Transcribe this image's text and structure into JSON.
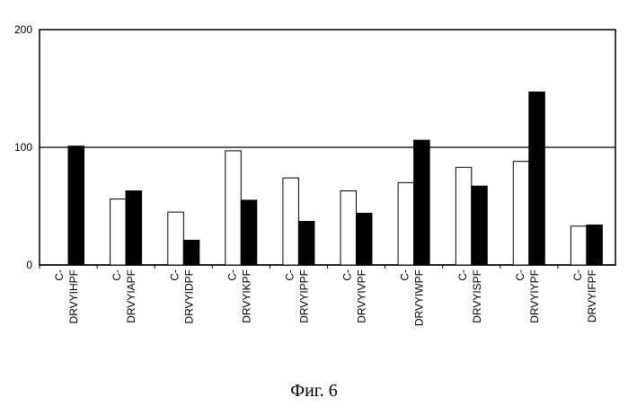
{
  "chart_data": {
    "type": "bar",
    "categories": [
      [
        "C-",
        "DRVYIHPF"
      ],
      [
        "C-",
        "DRVYIAPF"
      ],
      [
        "C-",
        "DRVYIDPF"
      ],
      [
        "C-",
        "DRVYIKPF"
      ],
      [
        "C-",
        "DRVYIPPF"
      ],
      [
        "C-",
        "DRVYIVPF"
      ],
      [
        "C-",
        "DRVYIWPF"
      ],
      [
        "C-",
        "DRVYISPF"
      ],
      [
        "C-",
        "DRVYIYPF"
      ],
      [
        "C-",
        "DRVYIFPF"
      ]
    ],
    "series": [
      {
        "color": "#ffffff",
        "values": [
          0,
          56,
          45,
          97,
          74,
          63,
          70,
          83,
          88,
          33
        ]
      },
      {
        "color": "#000000",
        "values": [
          101,
          63,
          21,
          55,
          37,
          44,
          106,
          67,
          147,
          34
        ]
      }
    ],
    "yticks": [
      "0",
      "100",
      "200"
    ],
    "ylim": [
      0,
      200
    ],
    "reference_line": 100,
    "grid": false
  },
  "caption": "Фиг. 6"
}
